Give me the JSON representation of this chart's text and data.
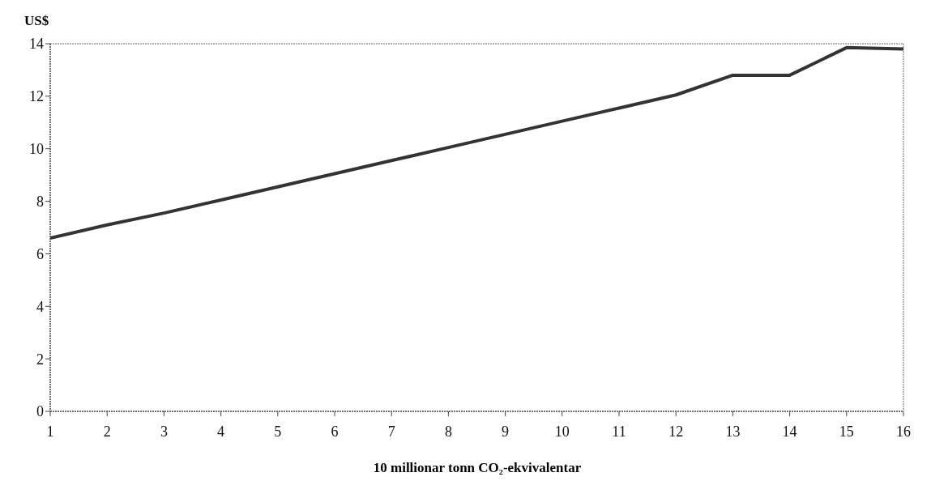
{
  "chart_data": {
    "type": "line",
    "ylabel": "US$",
    "xlabel": "10 millionar tonn CO₂-ekvivalentar",
    "x": [
      1,
      2,
      3,
      4,
      5,
      6,
      7,
      8,
      9,
      10,
      11,
      12,
      13,
      14,
      15,
      16
    ],
    "series": [
      {
        "color": "#333333",
        "values": [
          6.6,
          7.1,
          7.55,
          8.05,
          8.55,
          9.05,
          9.55,
          10.05,
          10.55,
          11.05,
          11.55,
          12.05,
          12.8,
          12.8,
          13.85,
          13.8
        ]
      }
    ],
    "xlim": [
      1,
      16
    ],
    "xticks": [
      1,
      2,
      3,
      4,
      5,
      6,
      7,
      8,
      9,
      10,
      11,
      12,
      13,
      14,
      15,
      16
    ],
    "ylim": [
      0,
      14
    ],
    "yticks": [
      0,
      2,
      4,
      6,
      8,
      10,
      12,
      14
    ],
    "grid": false,
    "legend": false,
    "marker": "none",
    "line_style": "solid"
  }
}
